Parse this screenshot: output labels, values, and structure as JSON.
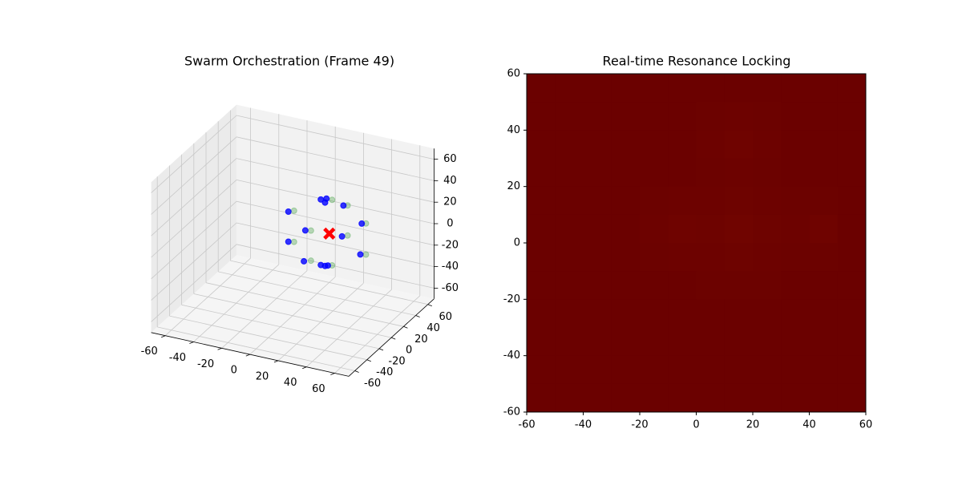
{
  "chart_data": [
    {
      "type": "scatter3d",
      "title": "Swarm Orchestration (Frame 49)",
      "xlim": [
        -70,
        70
      ],
      "ylim": [
        -70,
        70
      ],
      "zlim": [
        -70,
        70
      ],
      "xticks": [
        -60,
        -40,
        -20,
        0,
        20,
        40,
        60
      ],
      "yticks": [
        -60,
        -40,
        -20,
        0,
        20,
        40,
        60
      ],
      "zticks": [
        -60,
        -40,
        -20,
        0,
        20,
        40,
        60
      ],
      "series": [
        {
          "color": "#008000",
          "opacity": 0.25,
          "x": [
            28,
            39,
            1,
            52,
            13,
            1,
            13,
            52,
            28,
            39
          ],
          "y": [
            0,
            0,
            0,
            0,
            0,
            0,
            0,
            0,
            0,
            0
          ],
          "z": [
            46,
            44,
            28,
            31,
            13,
            -1,
            -15,
            2,
            -15,
            16
          ]
        },
        {
          "color": "#0000ff",
          "opacity": 0.8,
          "x": [
            20,
            24,
            23,
            36,
            -3,
            49,
            9,
            -3,
            8,
            48,
            20,
            23,
            25,
            35
          ],
          "y": [
            0,
            0,
            0,
            0,
            0,
            0,
            0,
            0,
            0,
            0,
            0,
            0,
            0,
            0
          ],
          "z": [
            44,
            46,
            42,
            43,
            26,
            30,
            12,
            -2,
            -17,
            1,
            -17,
            -17,
            -16,
            14
          ]
        }
      ],
      "target": {
        "color": "#ff0000",
        "x": 26,
        "y": 0,
        "z": 14
      }
    },
    {
      "type": "heatmap",
      "title": "Real-time Resonance Locking",
      "xlim": [
        -60,
        60
      ],
      "ylim": [
        -60,
        60
      ],
      "xticks": [
        -60,
        -40,
        -20,
        0,
        20,
        40,
        60
      ],
      "yticks": [
        -60,
        -40,
        -20,
        0,
        20,
        40,
        60
      ],
      "colors": [
        "#690000",
        "#7e0a00"
      ],
      "values": [
        [
          0.1,
          0.1,
          0.1,
          0.1,
          0.1,
          0.1,
          0.1,
          0.1,
          0.1,
          0.1,
          0.1,
          0.1
        ],
        [
          0.1,
          0.1,
          0.1,
          0.1,
          0.1,
          0.1,
          0.15,
          0.2,
          0.15,
          0.1,
          0.1,
          0.1
        ],
        [
          0.1,
          0.1,
          0.1,
          0.1,
          0.1,
          0.1,
          0.2,
          0.3,
          0.2,
          0.1,
          0.1,
          0.1
        ],
        [
          0.1,
          0.1,
          0.1,
          0.1,
          0.1,
          0.1,
          0.15,
          0.2,
          0.15,
          0.1,
          0.1,
          0.1
        ],
        [
          0.1,
          0.1,
          0.1,
          0.1,
          0.15,
          0.2,
          0.2,
          0.25,
          0.2,
          0.15,
          0.15,
          0.1
        ],
        [
          0.1,
          0.1,
          0.1,
          0.1,
          0.2,
          0.3,
          0.25,
          0.35,
          0.25,
          0.2,
          0.3,
          0.1
        ],
        [
          0.1,
          0.1,
          0.1,
          0.1,
          0.15,
          0.2,
          0.2,
          0.25,
          0.2,
          0.15,
          0.15,
          0.1
        ],
        [
          0.1,
          0.1,
          0.1,
          0.1,
          0.1,
          0.1,
          0.15,
          0.15,
          0.15,
          0.1,
          0.1,
          0.1
        ],
        [
          0.1,
          0.1,
          0.1,
          0.1,
          0.1,
          0.1,
          0.1,
          0.1,
          0.1,
          0.1,
          0.1,
          0.1
        ],
        [
          0.1,
          0.1,
          0.1,
          0.1,
          0.1,
          0.1,
          0.1,
          0.1,
          0.1,
          0.1,
          0.1,
          0.1
        ],
        [
          0.1,
          0.1,
          0.1,
          0.1,
          0.1,
          0.1,
          0.1,
          0.1,
          0.1,
          0.1,
          0.1,
          0.1
        ],
        [
          0.1,
          0.1,
          0.1,
          0.1,
          0.1,
          0.1,
          0.1,
          0.1,
          0.1,
          0.1,
          0.1,
          0.1
        ]
      ]
    }
  ]
}
